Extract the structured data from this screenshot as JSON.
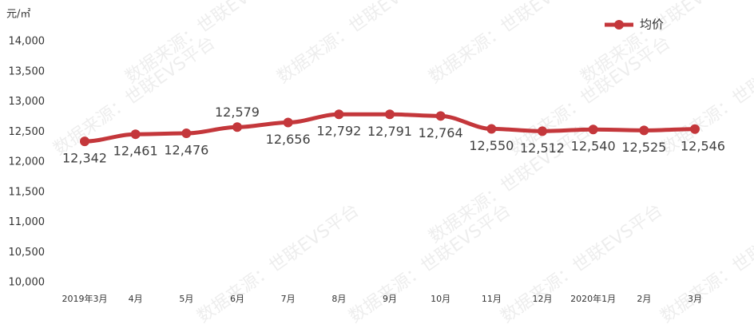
{
  "chart_data": {
    "type": "line",
    "y_unit": "元/㎡",
    "watermark": "数据来源：世联EVS平台",
    "categories": [
      "2019年3月",
      "4月",
      "5月",
      "6月",
      "7月",
      "8月",
      "9月",
      "10月",
      "11月",
      "12月",
      "2020年1月",
      "2月",
      "3月"
    ],
    "series": [
      {
        "name": "均价",
        "color": "#c4373b",
        "values": [
          12342,
          12461,
          12476,
          12579,
          12656,
          12792,
          12791,
          12764,
          12550,
          12512,
          12540,
          12525,
          12546
        ],
        "value_labels": [
          "12,342",
          "12,461",
          "12,476",
          "12,579",
          "12,656",
          "12,792",
          "12,791",
          "12,764",
          "12,550",
          "12,512",
          "12,540",
          "12,525",
          "12,546"
        ]
      }
    ],
    "ylim": [
      10000,
      14000
    ],
    "yticks": [
      {
        "value": 10000,
        "label": "10,000"
      },
      {
        "value": 10500,
        "label": "10,500"
      },
      {
        "value": 11000,
        "label": "11,000"
      },
      {
        "value": 11500,
        "label": "11,500"
      },
      {
        "value": 12000,
        "label": "12,000"
      },
      {
        "value": 12500,
        "label": "12,500"
      },
      {
        "value": 13000,
        "label": "13,000"
      },
      {
        "value": 13500,
        "label": "13,500"
      },
      {
        "value": 14000,
        "label": "14,000"
      }
    ],
    "grid": false,
    "legend": "top-right"
  }
}
